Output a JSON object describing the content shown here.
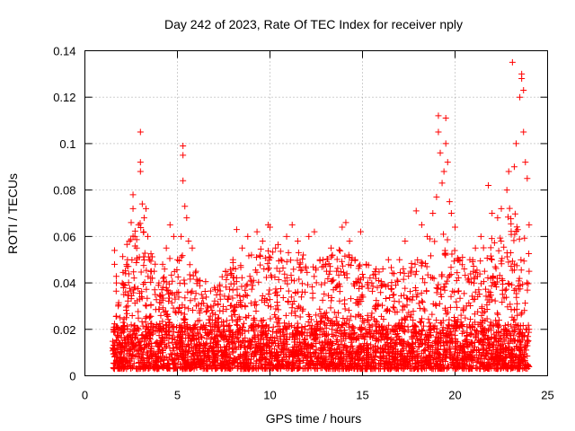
{
  "chart_data": {
    "type": "scatter",
    "title": "Day 242 of 2023, Rate Of TEC Index for receiver nply",
    "xlabel": "GPS time / hours",
    "ylabel": "ROTI / TECUs",
    "xlim": [
      0,
      25
    ],
    "ylim": [
      0,
      0.14
    ],
    "xticks": [
      0,
      5,
      10,
      15,
      20,
      25
    ],
    "xtick_labels": [
      "0",
      "5",
      "10",
      "15",
      "20",
      "25"
    ],
    "yticks": [
      0,
      0.02,
      0.04,
      0.06,
      0.08,
      0.1,
      0.12,
      0.14
    ],
    "ytick_labels": [
      "0",
      "0.02",
      "0.04",
      "0.06",
      "0.08",
      "0.1",
      "0.12",
      "0.14"
    ],
    "grid": true,
    "marker": "+",
    "color": "#ff0000",
    "series": [
      {
        "name": "ROTI",
        "points": [
          [
            1.5,
            0.012
          ],
          [
            1.6,
            0.054
          ],
          [
            1.6,
            0.048
          ],
          [
            1.7,
            0.04
          ],
          [
            1.8,
            0.03
          ],
          [
            1.9,
            0.025
          ],
          [
            2.0,
            0.02
          ],
          [
            2.1,
            0.035
          ],
          [
            2.2,
            0.044
          ],
          [
            2.3,
            0.05
          ],
          [
            2.4,
            0.058
          ],
          [
            2.5,
            0.066
          ],
          [
            2.6,
            0.078
          ],
          [
            2.6,
            0.072
          ],
          [
            2.7,
            0.06
          ],
          [
            2.8,
            0.055
          ],
          [
            2.9,
            0.065
          ],
          [
            3.0,
            0.105
          ],
          [
            3.0,
            0.092
          ],
          [
            3.0,
            0.088
          ],
          [
            3.1,
            0.074
          ],
          [
            3.2,
            0.068
          ],
          [
            3.3,
            0.072
          ],
          [
            3.4,
            0.06
          ],
          [
            3.5,
            0.05
          ],
          [
            3.6,
            0.045
          ],
          [
            3.8,
            0.035
          ],
          [
            4.0,
            0.04
          ],
          [
            4.2,
            0.048
          ],
          [
            4.4,
            0.055
          ],
          [
            4.6,
            0.065
          ],
          [
            4.8,
            0.06
          ],
          [
            5.0,
            0.05
          ],
          [
            5.2,
            0.06
          ],
          [
            5.3,
            0.099
          ],
          [
            5.3,
            0.095
          ],
          [
            5.3,
            0.084
          ],
          [
            5.4,
            0.073
          ],
          [
            5.5,
            0.068
          ],
          [
            5.6,
            0.058
          ],
          [
            5.8,
            0.055
          ],
          [
            6.0,
            0.045
          ],
          [
            6.3,
            0.035
          ],
          [
            6.6,
            0.03
          ],
          [
            7.0,
            0.038
          ],
          [
            7.3,
            0.035
          ],
          [
            7.6,
            0.045
          ],
          [
            8.0,
            0.05
          ],
          [
            8.2,
            0.063
          ],
          [
            8.5,
            0.055
          ],
          [
            8.8,
            0.06
          ],
          [
            9.0,
            0.052
          ],
          [
            9.3,
            0.062
          ],
          [
            9.6,
            0.058
          ],
          [
            9.9,
            0.065
          ],
          [
            10.0,
            0.064
          ],
          [
            10.3,
            0.055
          ],
          [
            10.6,
            0.05
          ],
          [
            10.9,
            0.06
          ],
          [
            11.2,
            0.065
          ],
          [
            11.5,
            0.058
          ],
          [
            11.8,
            0.052
          ],
          [
            12.1,
            0.06
          ],
          [
            12.4,
            0.062
          ],
          [
            12.7,
            0.05
          ],
          [
            13.0,
            0.048
          ],
          [
            13.3,
            0.055
          ],
          [
            13.6,
            0.045
          ],
          [
            13.9,
            0.064
          ],
          [
            14.1,
            0.066
          ],
          [
            14.3,
            0.058
          ],
          [
            14.6,
            0.05
          ],
          [
            14.9,
            0.062
          ],
          [
            15.2,
            0.048
          ],
          [
            15.5,
            0.04
          ],
          [
            15.8,
            0.038
          ],
          [
            16.1,
            0.046
          ],
          [
            16.4,
            0.05
          ],
          [
            16.7,
            0.044
          ],
          [
            17.0,
            0.05
          ],
          [
            17.3,
            0.058
          ],
          [
            17.6,
            0.045
          ],
          [
            17.9,
            0.071
          ],
          [
            18.2,
            0.065
          ],
          [
            18.5,
            0.06
          ],
          [
            18.8,
            0.07
          ],
          [
            19.0,
            0.077
          ],
          [
            19.1,
            0.112
          ],
          [
            19.1,
            0.105
          ],
          [
            19.2,
            0.096
          ],
          [
            19.3,
            0.083
          ],
          [
            19.4,
            0.088
          ],
          [
            19.5,
            0.1
          ],
          [
            19.5,
            0.111
          ],
          [
            19.6,
            0.092
          ],
          [
            19.7,
            0.075
          ],
          [
            19.8,
            0.07
          ],
          [
            20.0,
            0.064
          ],
          [
            20.2,
            0.05
          ],
          [
            20.5,
            0.046
          ],
          [
            20.8,
            0.05
          ],
          [
            21.1,
            0.055
          ],
          [
            21.4,
            0.06
          ],
          [
            21.8,
            0.082
          ],
          [
            22.0,
            0.07
          ],
          [
            22.3,
            0.068
          ],
          [
            22.5,
            0.072
          ],
          [
            22.8,
            0.08
          ],
          [
            22.9,
            0.088
          ],
          [
            23.1,
            0.135
          ],
          [
            23.2,
            0.09
          ],
          [
            23.3,
            0.1
          ],
          [
            23.5,
            0.12
          ],
          [
            23.6,
            0.13
          ],
          [
            23.6,
            0.128
          ],
          [
            23.7,
            0.123
          ],
          [
            23.7,
            0.105
          ],
          [
            23.8,
            0.092
          ],
          [
            23.9,
            0.085
          ],
          [
            24.0,
            0.065
          ],
          [
            24.0,
            0.045
          ],
          [
            24.0,
            0.02
          ]
        ]
      }
    ]
  }
}
